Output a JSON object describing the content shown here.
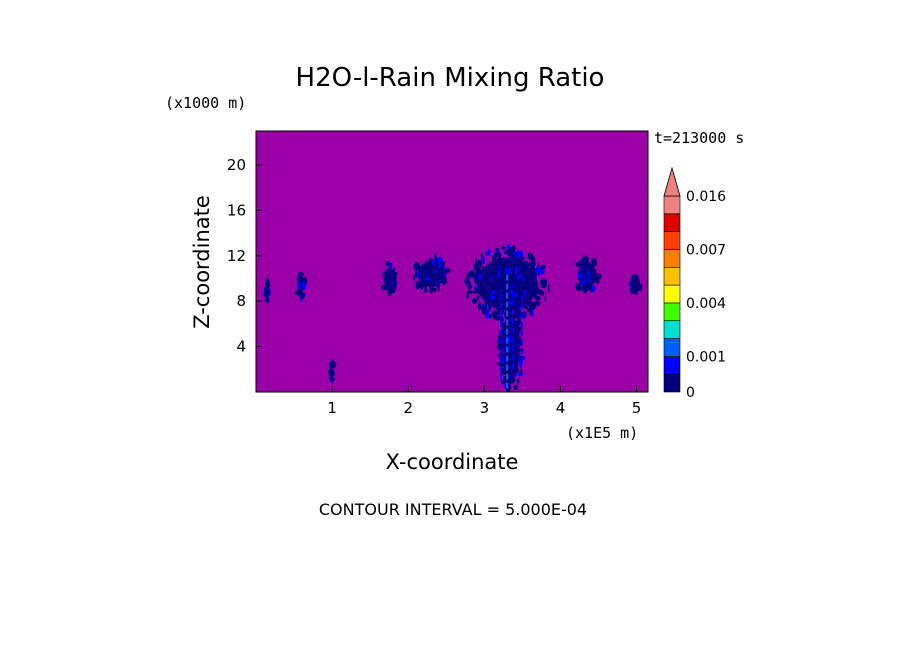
{
  "chart_data": {
    "type": "heatmap",
    "title": "H2O-l-Rain Mixing Ratio",
    "time_label": "t=213000 s",
    "xlabel": "X-coordinate",
    "ylabel": "Z-coordinate",
    "x_unit": "(x1E5 m)",
    "y_unit": "(x1000 m)",
    "xlim": [
      0,
      5.15
    ],
    "ylim": [
      0,
      23
    ],
    "x_ticks": [
      1,
      2,
      3,
      4,
      5
    ],
    "y_ticks": [
      4,
      8,
      12,
      16,
      20
    ],
    "background_value": 0,
    "background_color": "#9b00a8",
    "colorbar": {
      "levels": [
        0,
        0.0005,
        0.001,
        0.002,
        0.003,
        0.004,
        0.005,
        0.006,
        0.007,
        0.01,
        0.013,
        0.016
      ],
      "colors": [
        "#00007f",
        "#0000ff",
        "#0060ff",
        "#00e0d0",
        "#40ff00",
        "#ffff00",
        "#ffc000",
        "#ff8000",
        "#ff4000",
        "#e00000",
        "#f08080"
      ],
      "labels": [
        {
          "text": "0",
          "value": 0
        },
        {
          "text": "0.001",
          "value": 0.001
        },
        {
          "text": "0.004",
          "value": 0.004
        },
        {
          "text": "0.007",
          "value": 0.007
        },
        {
          "text": "0.016",
          "value": 0.016
        }
      ],
      "extend": "max"
    },
    "features": [
      {
        "x": 0.15,
        "z": 9.0,
        "w": 0.07,
        "h": 2.2,
        "value": 0.0003
      },
      {
        "x": 0.58,
        "z": 9.5,
        "w": 0.12,
        "h": 3.0,
        "value": 0.0003
      },
      {
        "x": 1.0,
        "z": 1.8,
        "w": 0.04,
        "h": 3.2,
        "value": 0.0004
      },
      {
        "x": 1.75,
        "z": 10.0,
        "w": 0.2,
        "h": 2.8,
        "value": 0.0003
      },
      {
        "x": 2.3,
        "z": 10.4,
        "w": 0.5,
        "h": 3.2,
        "value": 0.0003
      },
      {
        "x": 3.3,
        "z": 9.5,
        "w": 1.1,
        "h": 6.5,
        "value": 0.0004
      },
      {
        "x": 3.35,
        "z": 4.0,
        "w": 0.32,
        "h": 8.0,
        "value": 0.0004
      },
      {
        "x": 4.35,
        "z": 10.3,
        "w": 0.35,
        "h": 3.0,
        "value": 0.0003
      },
      {
        "x": 4.98,
        "z": 9.7,
        "w": 0.17,
        "h": 2.0,
        "value": 0.0003
      }
    ],
    "streaks": [
      {
        "x": 3.22,
        "z0": 1.0,
        "z1": 9.0,
        "value": 0.0009
      },
      {
        "x": 3.3,
        "z0": 0.3,
        "z1": 10.5,
        "value": 0.0012
      },
      {
        "x": 3.38,
        "z0": 2.0,
        "z1": 9.5,
        "value": 0.0009
      },
      {
        "x": 3.49,
        "z0": 2.5,
        "z1": 8.5,
        "value": 0.0009
      }
    ],
    "footer": "CONTOUR INTERVAL = 5.000E-04"
  }
}
